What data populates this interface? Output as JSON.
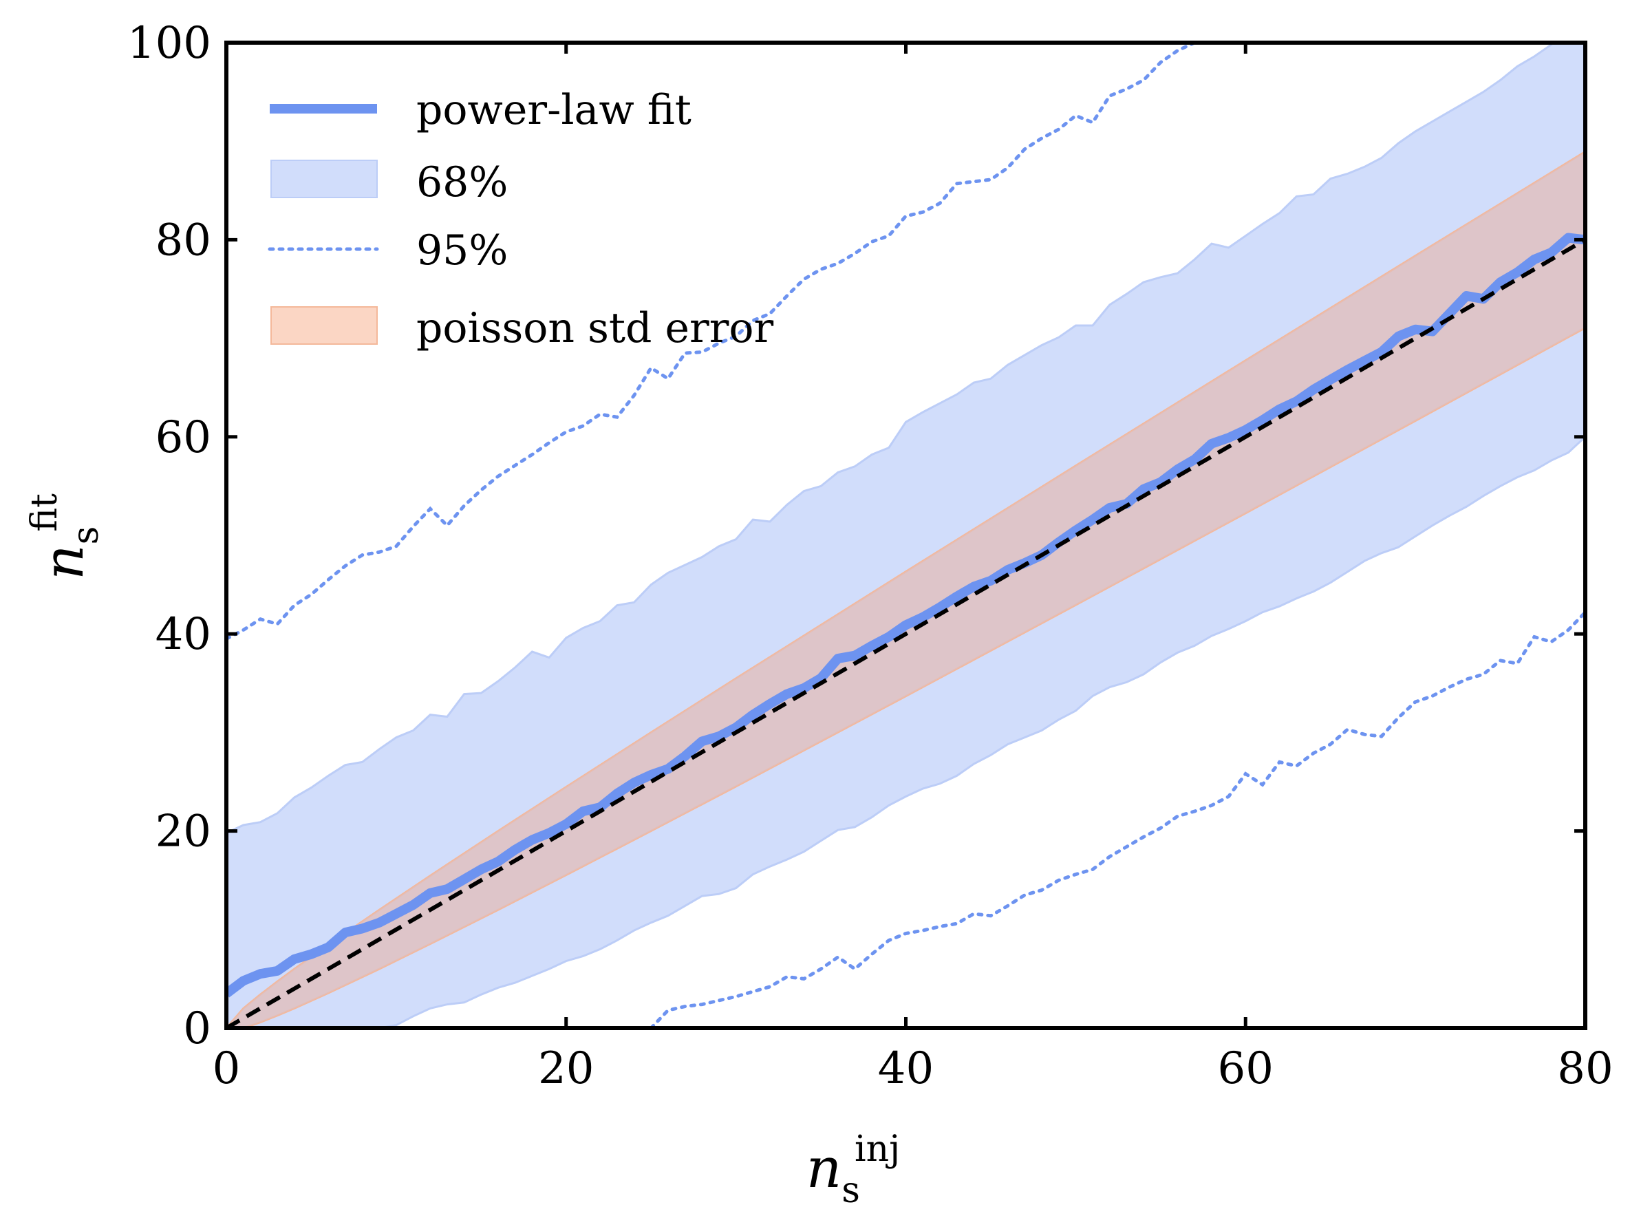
{
  "chart_data": {
    "type": "line",
    "title": "",
    "xlabel": {
      "base": "n",
      "sub": "s",
      "sup": "inj"
    },
    "ylabel": {
      "base": "n",
      "sub": "s",
      "sup": "fit"
    },
    "xlim": [
      0,
      80
    ],
    "ylim": [
      0,
      100
    ],
    "xticks": [
      "0",
      "20",
      "40",
      "60",
      "80"
    ],
    "yticks": [
      "0",
      "20",
      "40",
      "60",
      "80",
      "100"
    ],
    "grid": false,
    "legend_position": "top-left",
    "colors": {
      "fit": "#6d93f0",
      "band68": "#d1ddfb",
      "band68_edge": "#bccdf7",
      "poisson": "#f4b89a",
      "poisson_overlap": "#d8c1cc",
      "diagonal": "#000000",
      "axes": "#000000"
    },
    "legend": [
      {
        "key": "fit",
        "label": "power-law fit",
        "style": "line"
      },
      {
        "key": "band68",
        "label": "68%",
        "style": "band"
      },
      {
        "key": "band95",
        "label": "95%",
        "style": "dotted"
      },
      {
        "key": "poisson",
        "label": "poisson std error",
        "style": "band-orange"
      }
    ],
    "series": {
      "fit": {
        "name": "power-law fit",
        "x": [
          0,
          1,
          2,
          3,
          4,
          5,
          6,
          7,
          8,
          9,
          10,
          11,
          12,
          13,
          14,
          15,
          16,
          17,
          18,
          19,
          20,
          21,
          22,
          23,
          24,
          25,
          26,
          27,
          28,
          29,
          30,
          31,
          32,
          33,
          34,
          35,
          36,
          37,
          38,
          39,
          40,
          41,
          42,
          43,
          44,
          45,
          46,
          47,
          48,
          49,
          50,
          51,
          52,
          53,
          54,
          55,
          56,
          57,
          58,
          59,
          60,
          61,
          62,
          63,
          64,
          65,
          66,
          67,
          68,
          69,
          70,
          71,
          72,
          73,
          74,
          75,
          76,
          77,
          78,
          79,
          80
        ],
        "y": [
          3.5,
          4.8,
          5.5,
          5.8,
          7.0,
          7.5,
          8.2,
          9.7,
          10.1,
          10.7,
          11.6,
          12.5,
          13.7,
          14.1,
          15.1,
          16.1,
          16.9,
          18.1,
          19.1,
          19.8,
          20.7,
          22.0,
          22.4,
          23.8,
          24.9,
          25.7,
          26.3,
          27.6,
          29.1,
          29.6,
          30.5,
          31.8,
          32.9,
          33.9,
          34.5,
          35.5,
          37.5,
          37.8,
          38.8,
          39.7,
          40.9,
          41.7,
          42.7,
          43.8,
          44.8,
          45.4,
          46.5,
          47.2,
          48.0,
          49.3,
          50.5,
          51.6,
          52.8,
          53.2,
          54.7,
          55.4,
          56.7,
          57.7,
          59.3,
          59.9,
          60.7,
          61.7,
          62.8,
          63.6,
          64.8,
          65.8,
          66.8,
          67.7,
          68.6,
          70.2,
          70.9,
          70.7,
          72.5,
          74.3,
          74.0,
          75.7,
          76.7,
          78.0,
          78.7,
          80.2,
          80.0
        ]
      },
      "diagonal": {
        "name": "y = x",
        "x": [
          0,
          80
        ],
        "y": [
          0,
          80
        ]
      },
      "band68": {
        "name": "68%",
        "x": [
          0,
          1,
          2,
          3,
          4,
          5,
          6,
          7,
          8,
          9,
          10,
          11,
          12,
          13,
          14,
          15,
          16,
          17,
          18,
          19,
          20,
          21,
          22,
          23,
          24,
          25,
          26,
          27,
          28,
          29,
          30,
          31,
          32,
          33,
          34,
          35,
          36,
          37,
          38,
          39,
          40,
          41,
          42,
          43,
          44,
          45,
          46,
          47,
          48,
          49,
          50,
          51,
          52,
          53,
          54,
          55,
          56,
          57,
          58,
          59,
          60,
          61,
          62,
          63,
          64,
          65,
          66,
          67,
          68,
          69,
          70,
          71,
          72,
          73,
          74,
          75,
          76,
          77,
          78,
          79,
          80
        ],
        "lower": [
          0,
          0,
          0,
          0,
          0,
          0,
          0,
          0,
          0,
          0,
          0.3,
          1.2,
          2.0,
          2.4,
          2.6,
          3.4,
          4.1,
          4.6,
          5.3,
          6.0,
          6.8,
          7.3,
          8.0,
          8.9,
          9.9,
          10.7,
          11.4,
          12.4,
          13.4,
          13.6,
          14.2,
          15.6,
          16.4,
          17.1,
          17.9,
          19.0,
          20.1,
          20.4,
          21.4,
          22.6,
          23.5,
          24.3,
          24.8,
          25.6,
          26.8,
          27.7,
          28.8,
          29.5,
          30.2,
          31.3,
          32.2,
          33.7,
          34.6,
          35.1,
          35.9,
          37.1,
          38.1,
          38.8,
          39.8,
          40.5,
          41.3,
          42.2,
          42.8,
          43.6,
          44.3,
          45.2,
          46.3,
          47.4,
          48.2,
          48.8,
          49.9,
          51.0,
          52.0,
          52.9,
          54.0,
          55.0,
          55.9,
          56.6,
          57.6,
          58.4,
          60.0
        ],
        "upper": [
          19.8,
          20.6,
          20.9,
          21.8,
          23.4,
          24.4,
          25.6,
          26.7,
          27.0,
          28.3,
          29.5,
          30.2,
          31.8,
          31.6,
          33.9,
          34.0,
          35.2,
          36.6,
          38.2,
          37.6,
          39.6,
          40.6,
          41.3,
          42.9,
          43.2,
          45.0,
          46.2,
          47.0,
          47.8,
          48.9,
          49.6,
          51.6,
          51.4,
          53.1,
          54.5,
          55.0,
          56.4,
          57.0,
          58.2,
          58.9,
          61.5,
          62.5,
          63.4,
          64.3,
          65.5,
          65.9,
          67.3,
          68.3,
          69.3,
          70.1,
          71.3,
          71.3,
          73.4,
          74.5,
          75.7,
          76.2,
          76.6,
          78.0,
          79.6,
          79.2,
          80.4,
          81.6,
          82.7,
          84.4,
          84.6,
          86.2,
          86.7,
          87.4,
          88.3,
          89.8,
          91.0,
          92.0,
          93.0,
          94.0,
          95.0,
          96.2,
          97.6,
          98.6,
          99.8,
          101.5,
          102.5
        ]
      },
      "band95": {
        "name": "95%",
        "upper": {
          "x": [
            0,
            1,
            2,
            3,
            4,
            5,
            6,
            7,
            8,
            9,
            10,
            11,
            12,
            13,
            14,
            15,
            16,
            17,
            18,
            19,
            20,
            21,
            22,
            23,
            24,
            25,
            26,
            27,
            28,
            29,
            30,
            31,
            32,
            33,
            34,
            35,
            36,
            37,
            38,
            39,
            40,
            41,
            42,
            43,
            44,
            45,
            46,
            47,
            48,
            49,
            50,
            51,
            52,
            53,
            54,
            55,
            56,
            57,
            58
          ],
          "y": [
            39.5,
            40.4,
            41.5,
            41.0,
            42.9,
            44.0,
            45.5,
            46.9,
            48.0,
            48.3,
            48.9,
            50.9,
            52.7,
            51.0,
            53.0,
            54.6,
            56.0,
            57.1,
            58.2,
            59.4,
            60.5,
            61.1,
            62.3,
            62.0,
            64.2,
            67.0,
            65.9,
            68.5,
            68.6,
            69.5,
            70.2,
            71.8,
            72.5,
            74.3,
            76.0,
            77.0,
            77.6,
            78.6,
            79.8,
            80.4,
            82.4,
            82.8,
            83.7,
            85.7,
            85.9,
            86.1,
            87.3,
            89.2,
            90.3,
            91.2,
            92.6,
            91.9,
            94.6,
            95.3,
            96.2,
            98.0,
            99.2,
            100.0,
            101.0
          ]
        },
        "lower": {
          "x": [
            25,
            26,
            27,
            28,
            29,
            30,
            31,
            32,
            33,
            34,
            35,
            36,
            37,
            38,
            39,
            40,
            41,
            42,
            43,
            44,
            45,
            46,
            47,
            48,
            49,
            50,
            51,
            52,
            53,
            54,
            55,
            56,
            57,
            58,
            59,
            60,
            61,
            62,
            63,
            64,
            65,
            66,
            67,
            68,
            69,
            70,
            71,
            72,
            73,
            74,
            75,
            76,
            77,
            78,
            79,
            80
          ],
          "y": [
            0.0,
            1.8,
            2.2,
            2.4,
            2.8,
            3.2,
            3.7,
            4.2,
            5.2,
            5.0,
            6.0,
            7.2,
            6.0,
            7.5,
            8.9,
            9.6,
            9.9,
            10.3,
            10.6,
            11.6,
            11.4,
            12.4,
            13.5,
            14.0,
            15.0,
            15.6,
            16.1,
            17.4,
            18.4,
            19.4,
            20.3,
            21.5,
            22.0,
            22.6,
            23.5,
            25.8,
            24.7,
            27.0,
            26.6,
            27.9,
            28.8,
            30.3,
            29.8,
            29.6,
            31.5,
            33.1,
            33.7,
            34.6,
            35.4,
            35.9,
            37.3,
            37.0,
            39.7,
            39.2,
            40.4,
            42.2
          ]
        }
      },
      "poisson": {
        "name": "poisson std error",
        "x": [
          0,
          1,
          2,
          3,
          4,
          6,
          9,
          12,
          16,
          20,
          25,
          30,
          40,
          50,
          60,
          70,
          80
        ],
        "lower": [
          0,
          0,
          0.59,
          1.27,
          2.0,
          3.55,
          6.0,
          8.54,
          12.0,
          15.53,
          20.0,
          24.52,
          33.68,
          42.93,
          52.25,
          61.63,
          71.06
        ],
        "upper": [
          0,
          2.0,
          3.41,
          4.73,
          6.0,
          8.45,
          12.0,
          15.46,
          20.0,
          24.47,
          30.0,
          35.48,
          46.32,
          57.07,
          67.75,
          78.37,
          88.94
        ]
      }
    }
  }
}
